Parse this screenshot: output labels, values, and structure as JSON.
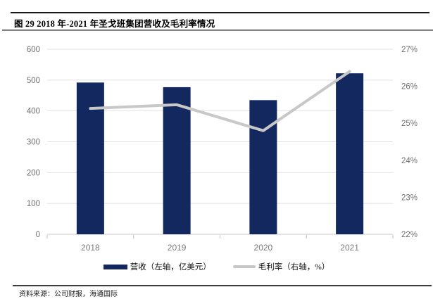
{
  "header": {
    "title": "图 29 2018 年-2021 年圣戈班集团营收及毛利率情况"
  },
  "footer": {
    "source": "资料来源：公司财报，海通国际"
  },
  "legend": {
    "revenue_label": "营收（左轴，亿美元）",
    "margin_label": "毛利率（右轴，%）"
  },
  "colors": {
    "bar": "#12285E",
    "line": "#C8C8C8",
    "gridline": "#E2E2E2",
    "axis_line": "#D4D4D4",
    "tick_mark": "#C9C9C9",
    "axis_label": "#6F6F6F"
  },
  "chart_data": {
    "type": "bar",
    "subtype": "bar+line combo, dual axis",
    "title": "图 29 2018 年-2021 年圣戈班集团营收及毛利率情况",
    "categories": [
      "2018",
      "2019",
      "2020",
      "2021"
    ],
    "series": [
      {
        "name": "营收（左轴，亿美元）",
        "type": "bar",
        "axis": "left",
        "color": "#12285E",
        "values": [
          492,
          477,
          435,
          522
        ]
      },
      {
        "name": "毛利率（右轴，%）",
        "type": "line",
        "axis": "right",
        "color": "#C8C8C8",
        "values": [
          25.4,
          25.5,
          24.8,
          26.4
        ]
      }
    ],
    "left_axis": {
      "min": 0,
      "max": 600,
      "step": 100,
      "tick_labels": [
        "0",
        "100",
        "200",
        "300",
        "400",
        "500",
        "600"
      ]
    },
    "right_axis": {
      "min": 22,
      "max": 27,
      "step": 1,
      "tick_labels": [
        "22%",
        "23%",
        "24%",
        "25%",
        "26%",
        "27%"
      ]
    },
    "grid": "horizontal gridlines aligned to left axis",
    "legend_position": "bottom",
    "source": "资料来源：公司财报，海通国际"
  }
}
